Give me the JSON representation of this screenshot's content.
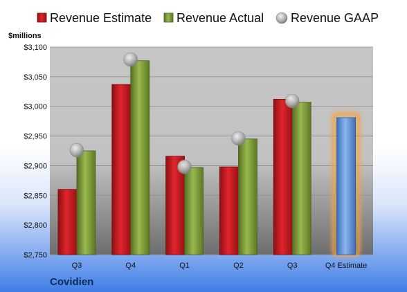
{
  "chart_data": {
    "type": "bar",
    "ylabel": "$millions",
    "ylim": [
      2750,
      3100
    ],
    "yticks": [
      "$2,750",
      "$2,800",
      "$2,850",
      "$2,900",
      "$2,950",
      "$3,000",
      "$3,050",
      "$3,100"
    ],
    "ytick_values": [
      2750,
      2800,
      2850,
      2900,
      2950,
      3000,
      3050,
      3100
    ],
    "categories": [
      "Q3",
      "Q4",
      "Q1",
      "Q2",
      "Q3",
      "Q4 Estimate"
    ],
    "series": [
      {
        "name": "Revenue Estimate",
        "kind": "bar",
        "color": "#c0181f",
        "values": [
          2860,
          3037,
          2916,
          2898,
          3012,
          null
        ]
      },
      {
        "name": "Revenue Actual",
        "kind": "bar",
        "color": "#7a9a35",
        "values": [
          2925,
          3077,
          2897,
          2945,
          3007,
          null
        ]
      },
      {
        "name": "Revenue GAAP",
        "kind": "marker",
        "color": "#b8b8b8",
        "values": [
          2926,
          3079,
          2898,
          2946,
          3009,
          null
        ]
      },
      {
        "name": "Q4 Estimate",
        "kind": "bar",
        "color": "#5b8fd6",
        "highlight": "#f5a142",
        "values": [
          null,
          null,
          null,
          null,
          null,
          2981
        ]
      }
    ],
    "legend": [
      "Revenue Estimate",
      "Revenue Actual",
      "Revenue GAAP"
    ],
    "legend_position": "top",
    "grid": true,
    "company": "Covidien"
  }
}
